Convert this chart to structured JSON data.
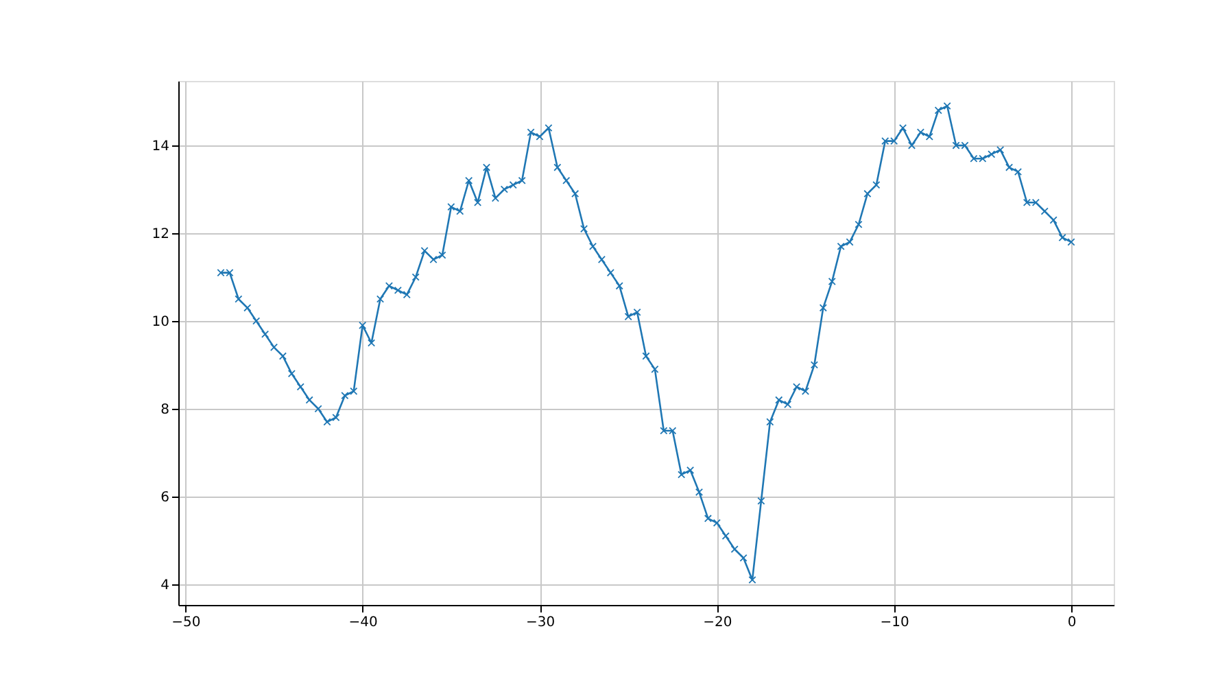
{
  "chart_data": {
    "type": "line",
    "marker": "cross",
    "grid": true,
    "x": [
      -48,
      -47.5,
      -47,
      -46.5,
      -46,
      -45.5,
      -45,
      -44.5,
      -44,
      -43.5,
      -43,
      -42.5,
      -42,
      -41.5,
      -41,
      -40.5,
      -40,
      -39.5,
      -39,
      -38.5,
      -38,
      -37.5,
      -37,
      -36.5,
      -36,
      -35.5,
      -35,
      -34.5,
      -34,
      -33.5,
      -33,
      -32.5,
      -32,
      -31.5,
      -31,
      -30.5,
      -30,
      -29.5,
      -29,
      -28.5,
      -28,
      -27.5,
      -27,
      -26.5,
      -26,
      -25.5,
      -25,
      -24.5,
      -24,
      -23.5,
      -23,
      -22.5,
      -22,
      -21.5,
      -21,
      -20.5,
      -20,
      -19.5,
      -19,
      -18.5,
      -18,
      -17.5,
      -17,
      -16.5,
      -16,
      -15.5,
      -15,
      -14.5,
      -14,
      -13.5,
      -13,
      -12.5,
      -12,
      -11.5,
      -11,
      -10.5,
      -10,
      -9.5,
      -9,
      -8.5,
      -8,
      -7.5,
      -7,
      -6.5,
      -6,
      -5.5,
      -5,
      -4.5,
      -4,
      -3.5,
      -3,
      -2.5,
      -2,
      -1.5,
      -1,
      -0.5,
      0
    ],
    "series": [
      {
        "color": "#1f77b4",
        "values": [
          11.1,
          11.1,
          10.5,
          10.3,
          10.0,
          9.7,
          9.4,
          9.2,
          8.8,
          8.5,
          8.2,
          8.0,
          7.7,
          7.8,
          8.3,
          8.4,
          9.9,
          9.5,
          10.5,
          10.8,
          10.7,
          10.6,
          11.0,
          11.6,
          11.4,
          11.5,
          12.6,
          12.5,
          13.2,
          12.7,
          13.5,
          12.8,
          13.0,
          13.1,
          13.2,
          14.3,
          14.2,
          14.4,
          13.5,
          13.2,
          12.9,
          12.1,
          11.7,
          11.4,
          11.1,
          10.8,
          10.1,
          10.2,
          9.2,
          8.9,
          7.5,
          7.5,
          6.5,
          6.6,
          6.1,
          5.5,
          5.4,
          5.1,
          4.8,
          4.6,
          4.1,
          5.9,
          7.7,
          8.2,
          8.1,
          8.5,
          8.4,
          9.0,
          10.3,
          10.9,
          11.7,
          11.8,
          12.2,
          12.9,
          13.1,
          14.1,
          14.1,
          14.4,
          14.0,
          14.3,
          14.2,
          14.8,
          14.9,
          14.0,
          14.0,
          13.7,
          13.7,
          13.8,
          13.9,
          13.5,
          13.4,
          12.7,
          12.7,
          12.5,
          12.3,
          11.9,
          11.8
        ]
      }
    ],
    "xlim": [
      -50.4,
      2.4
    ],
    "xticks": [
      -50,
      -40,
      -30,
      -20,
      -10,
      0
    ],
    "ylim": [
      3.53,
      15.47
    ],
    "yticks": [
      4,
      6,
      8,
      10,
      12,
      14
    ]
  }
}
